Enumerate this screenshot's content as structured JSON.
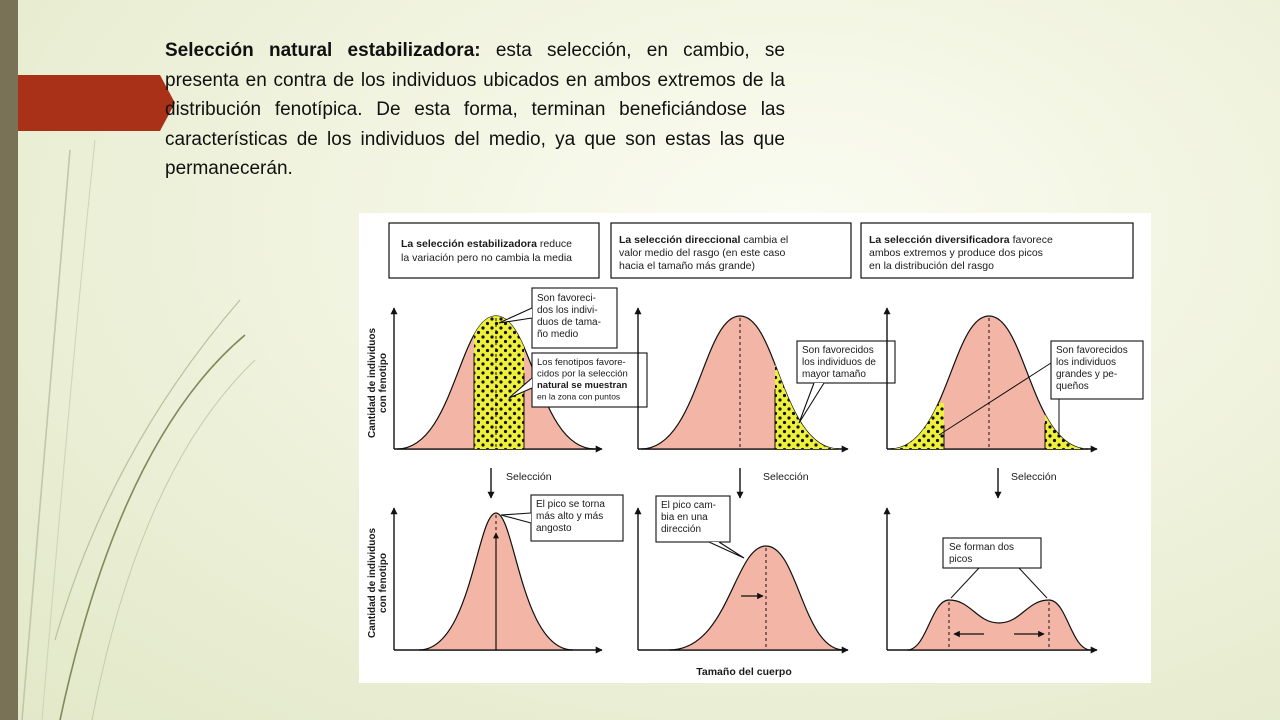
{
  "slide": {
    "heading_bold": "Selección natural estabilizadora:",
    "paragraph": " esta selección, en cambio, se presenta en contra de los individuos ubicados en ambos extremos de la distribución fenotípica. De esta forma, terminan beneficiándose las características de los individuos del medio, ya que son estas las que permanecerán."
  },
  "figure": {
    "panels": [
      {
        "caption_bold": "La selección estabilizadora",
        "caption_rest": "reduce",
        "caption_line2": "la variación pero no cambia la media",
        "callout_top": [
          "Son favoreci-",
          "dos los indivi-",
          "duos de tama-",
          "ño medio"
        ],
        "callout_bottom": [
          "Los fenotipos favore-",
          "cidos por la selección",
          "natural se muestran",
          "en la zona con puntos"
        ],
        "arrow_label": "Selección",
        "result_callout": [
          "El pico se torna",
          "más alto y más",
          "angosto"
        ]
      },
      {
        "caption_bold": "La selección direccional",
        "caption_rest": "cambia el",
        "caption_line2": "valor medio del rasgo (en este caso",
        "caption_line3": "hacia el tamaño más grande)",
        "callout": [
          "Son favorecidos",
          "los individuos de",
          "mayor tamaño"
        ],
        "arrow_label": "Selección",
        "result_callout": [
          "El pico cam-",
          "bia en una",
          "dirección"
        ]
      },
      {
        "caption_bold": "La selección diversificadora",
        "caption_rest": "favorece",
        "caption_line2": "ambos extremos y produce dos picos",
        "caption_line3": "en la distribución del rasgo",
        "callout": [
          "Son favorecidos",
          "los individuos",
          "grandes y pe-",
          "queños"
        ],
        "arrow_label": "Selección",
        "result_callout": [
          "Se forman dos",
          "picos"
        ]
      }
    ],
    "y_axis_label": [
      "Cantidad de individuos",
      "con fenotipo"
    ],
    "x_axis_label": "Tamaño del cuerpo",
    "colors": {
      "curve_fill": "#f3b6a6",
      "selected_fill": "#eef03c",
      "dots": "#111111"
    }
  }
}
